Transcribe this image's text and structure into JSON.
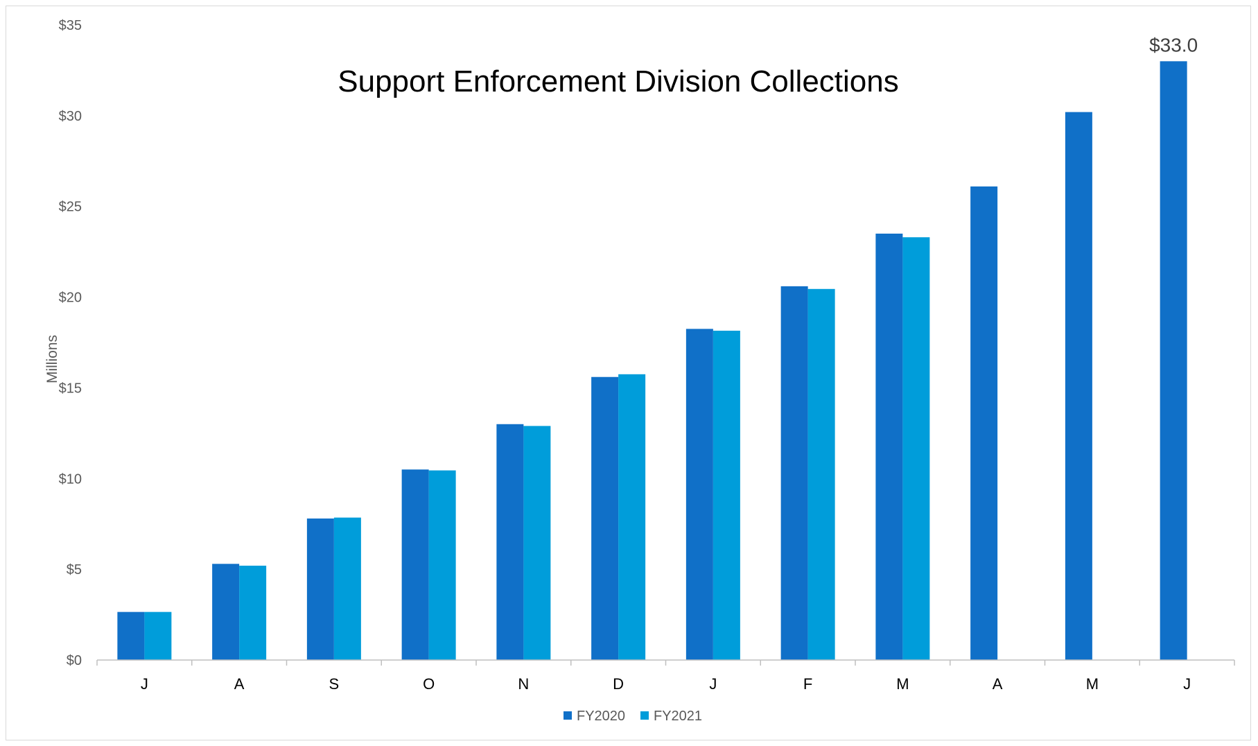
{
  "chart_data": {
    "type": "bar",
    "title": "Support Enforcement Division Collections",
    "ylabel": "Millions",
    "xlabel": "",
    "ylim": [
      0,
      35
    ],
    "y_ticks": [
      0,
      5,
      10,
      15,
      20,
      25,
      30,
      35
    ],
    "y_tick_labels": [
      "$0",
      "$5",
      "$10",
      "$15",
      "$20",
      "$25",
      "$30",
      "$35"
    ],
    "categories": [
      "J",
      "A",
      "S",
      "O",
      "N",
      "D",
      "J",
      "F",
      "M",
      "A",
      "M",
      "J"
    ],
    "series": [
      {
        "name": "FY2020",
        "color": "#1070C8",
        "values": [
          2.65,
          5.3,
          7.8,
          10.5,
          13.0,
          15.6,
          18.25,
          20.6,
          23.5,
          26.1,
          30.2,
          33.0
        ]
      },
      {
        "name": "FY2021",
        "color": "#009DDA",
        "values": [
          2.65,
          5.2,
          7.85,
          10.45,
          12.9,
          15.75,
          18.15,
          20.45,
          23.3,
          null,
          null,
          null
        ]
      }
    ],
    "data_labels": [
      {
        "series": 0,
        "index": 11,
        "text": "$33.0"
      }
    ],
    "grid": false,
    "legend_position": "bottom-center"
  }
}
